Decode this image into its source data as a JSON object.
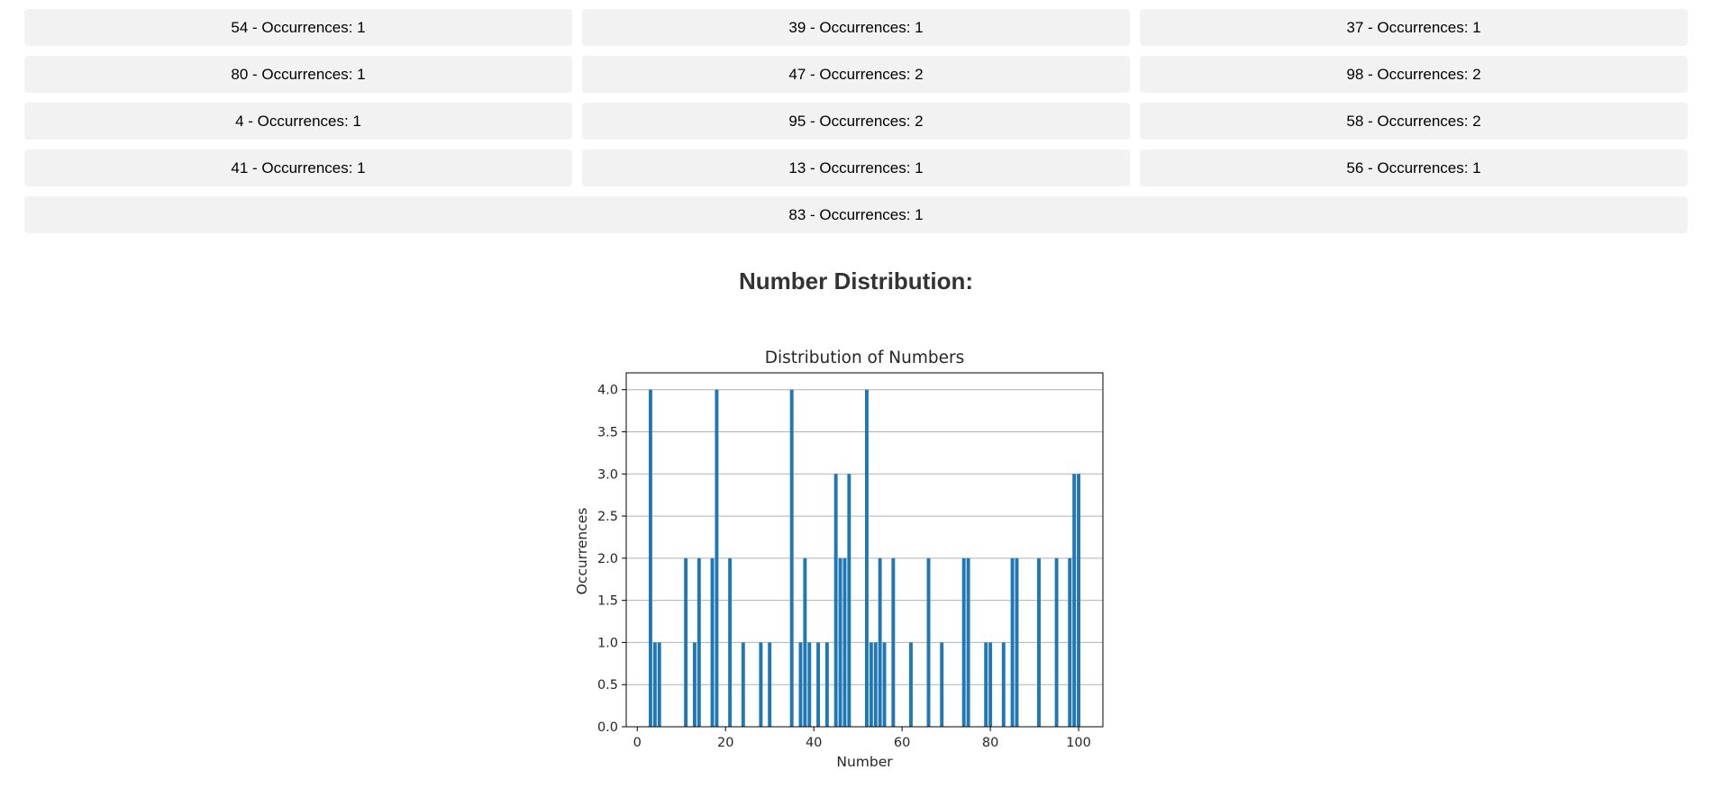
{
  "occurrence_rows": [
    {
      "label": "54 - Occurrences: 1"
    },
    {
      "label": "39 - Occurrences: 1"
    },
    {
      "label": "37 - Occurrences: 1"
    },
    {
      "label": "80 - Occurrences: 1"
    },
    {
      "label": "47 - Occurrences: 2"
    },
    {
      "label": "98 - Occurrences: 2"
    },
    {
      "label": "4 - Occurrences: 1"
    },
    {
      "label": "95 - Occurrences: 2"
    },
    {
      "label": "58 - Occurrences: 2"
    },
    {
      "label": "41 - Occurrences: 1"
    },
    {
      "label": "13 - Occurrences: 1"
    },
    {
      "label": "56 - Occurrences: 1"
    },
    {
      "label": "83 - Occurrences: 1"
    }
  ],
  "section_title": "Number Distribution:",
  "colors": {
    "bar": "#1f77b4",
    "cell_background": "#f2f2f2",
    "grid": "#b0b0b0"
  },
  "chart_data": {
    "type": "bar",
    "title": "Distribution of Numbers",
    "xlabel": "Number",
    "ylabel": "Occurrences",
    "xlim": [
      -2.5,
      105.5
    ],
    "ylim": [
      0,
      4.2
    ],
    "xticks": [
      0,
      20,
      40,
      60,
      80,
      100
    ],
    "yticks": [
      0.0,
      0.5,
      1.0,
      1.5,
      2.0,
      2.5,
      3.0,
      3.5,
      4.0
    ],
    "ytick_labels": [
      "0.0",
      "0.5",
      "1.0",
      "1.5",
      "2.0",
      "2.5",
      "3.0",
      "3.5",
      "4.0"
    ],
    "grid": "horizontal",
    "x": [
      3,
      4,
      5,
      11,
      13,
      14,
      17,
      18,
      21,
      24,
      28,
      30,
      35,
      37,
      38,
      39,
      41,
      43,
      45,
      46,
      47,
      48,
      52,
      53,
      54,
      55,
      56,
      58,
      62,
      66,
      69,
      74,
      75,
      79,
      80,
      83,
      85,
      86,
      91,
      95,
      98,
      99,
      100
    ],
    "values": [
      4,
      1,
      1,
      2,
      1,
      2,
      2,
      4,
      2,
      1,
      1,
      1,
      4,
      1,
      2,
      1,
      1,
      1,
      3,
      2,
      2,
      3,
      4,
      1,
      1,
      2,
      1,
      2,
      1,
      2,
      1,
      2,
      2,
      1,
      1,
      1,
      2,
      2,
      2,
      2,
      2,
      3,
      3
    ]
  }
}
